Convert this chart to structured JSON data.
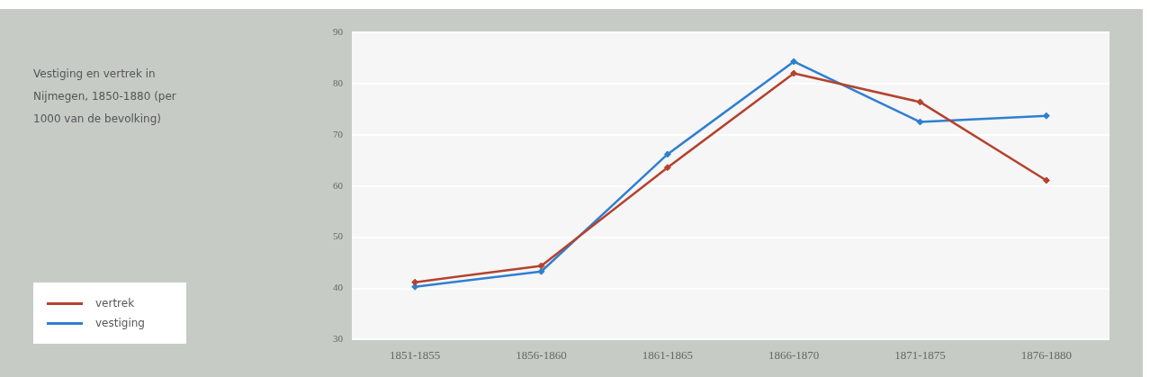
{
  "chart_data": {
    "type": "line",
    "title": "Vestiging en vertrek in Nijmegen, 1850-1880 (per 1000 van de bevolking)",
    "categories": [
      "1851-1855",
      "1856-1860",
      "1861-1865",
      "1866-1870",
      "1871-1875",
      "1876-1880"
    ],
    "series": [
      {
        "name": "vertrek",
        "color": "#b5422e",
        "values": [
          41.2,
          44.4,
          63.6,
          82,
          76.4,
          61.1
        ]
      },
      {
        "name": "vestiging",
        "color": "#2f7fd0",
        "values": [
          40.3,
          43.3,
          66.2,
          84.3,
          72.5,
          73.7
        ]
      }
    ],
    "ylim": [
      30,
      90
    ],
    "yticks": [
      30,
      40,
      50,
      60,
      70,
      80,
      90
    ],
    "grid": "y",
    "legend": "left",
    "marker": "diamond",
    "line_style": "solid"
  }
}
